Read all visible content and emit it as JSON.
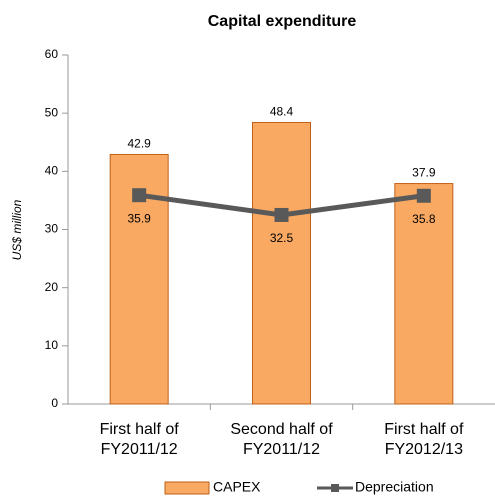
{
  "chart_data": {
    "type": "bar",
    "title": "Capital expenditure",
    "y_label": "US$ million",
    "categories": [
      "First half of\nFY2011/12",
      "Second half of\nFY2011/12",
      "First half of\nFY2012/13"
    ],
    "series": [
      {
        "name": "CAPEX",
        "type": "bar",
        "color": "#f9a962",
        "values": [
          42.9,
          48.4,
          37.9
        ]
      },
      {
        "name": "Depreciation",
        "type": "line",
        "color": "#595959",
        "values": [
          35.9,
          32.5,
          35.8
        ]
      }
    ],
    "ylim": [
      0,
      60
    ],
    "yticks": [
      0,
      10,
      20,
      30,
      40,
      50,
      60
    ],
    "grid": false,
    "legend": "bottom"
  }
}
